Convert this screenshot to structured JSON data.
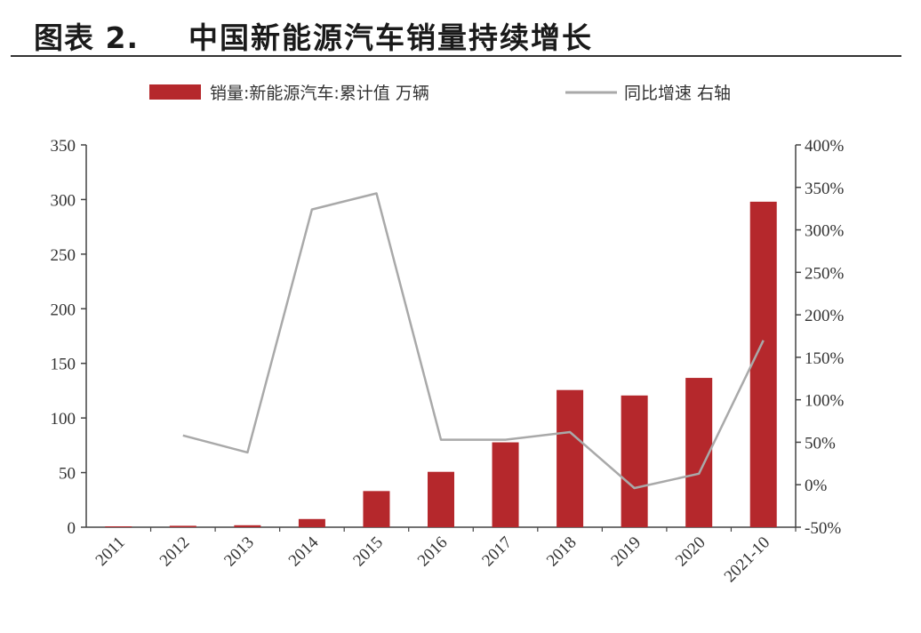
{
  "header": {
    "figure_label": "图表 2.",
    "title": "中国新能源汽车销量持续增长"
  },
  "colors": {
    "bar": "#b5282c",
    "line": "#a9a9a9",
    "axis": "#444444"
  },
  "chart_data": {
    "type": "bar",
    "categories": [
      "2011",
      "2012",
      "2013",
      "2014",
      "2015",
      "2016",
      "2017",
      "2018",
      "2019",
      "2020",
      "2021-10"
    ],
    "series": [
      {
        "name": "销量:新能源汽车:累计值 万辆",
        "type": "bar",
        "axis": "left",
        "values": [
          0.8,
          1.3,
          1.8,
          7.5,
          33.1,
          50.7,
          77.7,
          125.6,
          120.6,
          136.7,
          298
        ]
      },
      {
        "name": "同比增速 右轴",
        "type": "line",
        "axis": "right",
        "values": [
          null,
          58,
          38,
          324,
          343,
          53,
          53,
          62,
          -4,
          13,
          170
        ]
      }
    ],
    "left_axis": {
      "range": [
        0,
        350
      ],
      "ticks": [
        "0",
        "50",
        "100",
        "150",
        "200",
        "250",
        "300",
        "350"
      ]
    },
    "right_axis": {
      "range": [
        -50,
        400
      ],
      "ticks": [
        "-50%",
        "0%",
        "50%",
        "100%",
        "150%",
        "200%",
        "250%",
        "300%",
        "350%",
        "400%"
      ]
    },
    "legend_position": "top-center",
    "grid": false
  }
}
